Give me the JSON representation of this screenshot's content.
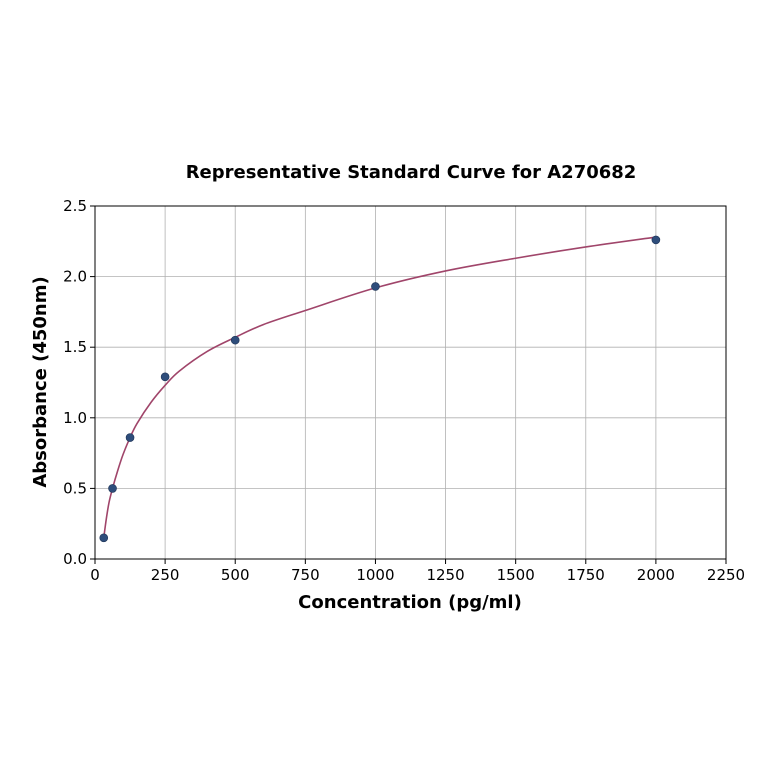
{
  "chart_data": {
    "type": "scatter",
    "title": "Representative Standard Curve for A270682",
    "xlabel": "Concentration (pg/ml)",
    "ylabel": "Absorbance (450nm)",
    "xlim": [
      0,
      2250
    ],
    "ylim": [
      0,
      2.5
    ],
    "xticks": [
      0,
      250,
      500,
      750,
      1000,
      1250,
      1500,
      1750,
      2000,
      2250
    ],
    "yticks": [
      0.0,
      0.5,
      1.0,
      1.5,
      2.0,
      2.5
    ],
    "xtick_labels": [
      "0",
      "250",
      "500",
      "750",
      "1000",
      "1250",
      "1500",
      "1750",
      "2000",
      "2250"
    ],
    "ytick_labels": [
      "0.0",
      "0.5",
      "1.0",
      "1.5",
      "2.0",
      "2.5"
    ],
    "grid": true,
    "series": [
      {
        "kind": "points",
        "x": [
          31.25,
          62.5,
          125,
          250,
          500,
          1000,
          2000
        ],
        "y": [
          0.15,
          0.5,
          0.86,
          1.29,
          1.55,
          1.93,
          2.26
        ],
        "color": "#2e4d7b"
      },
      {
        "kind": "fit-curve",
        "x": [
          31.25,
          40,
          50,
          62.5,
          80,
          100,
          125,
          150,
          200,
          250,
          300,
          400,
          500,
          600,
          750,
          1000,
          1250,
          1500,
          1750,
          2000
        ],
        "y": [
          0.15,
          0.28,
          0.4,
          0.5,
          0.62,
          0.74,
          0.86,
          0.96,
          1.11,
          1.23,
          1.33,
          1.47,
          1.57,
          1.66,
          1.76,
          1.92,
          2.04,
          2.13,
          2.21,
          2.28
        ],
        "color": "#a0456a"
      }
    ]
  }
}
